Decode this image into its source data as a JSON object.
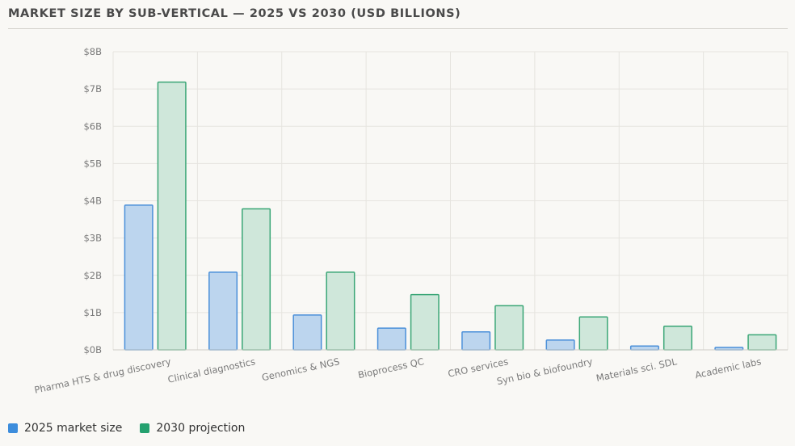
{
  "colors": {
    "series_2025_fill": "#bcd5ee",
    "series_2025_stroke": "#4a8fd9",
    "series_2030_fill": "#cfe7da",
    "series_2030_stroke": "#3aa676",
    "legend_2025": "#3d8ddc",
    "legend_2030": "#25a16f",
    "grid": "#e6e4df",
    "tick_text": "#7a7a7a"
  },
  "chart_data": {
    "type": "bar",
    "title": "MARKET SIZE BY SUB-VERTICAL — 2025 VS 2030 (USD BILLIONS)",
    "categories": [
      "Pharma HTS & drug discovery",
      "Clinical diagnostics",
      "Genomics & NGS",
      "Bioprocess QC",
      "CRO services",
      "Syn bio & biofoundry",
      "Materials sci. SDL",
      "Academic labs"
    ],
    "series": [
      {
        "name": "2025 market size",
        "values": [
          3.9,
          2.1,
          0.95,
          0.6,
          0.5,
          0.28,
          0.12,
          0.08
        ]
      },
      {
        "name": "2030 projection",
        "values": [
          7.2,
          3.8,
          2.1,
          1.5,
          1.2,
          0.9,
          0.65,
          0.42
        ]
      }
    ],
    "ylim": [
      0,
      8
    ],
    "y_ticks": [
      "$0B",
      "$1B",
      "$2B",
      "$3B",
      "$4B",
      "$5B",
      "$6B",
      "$7B",
      "$8B"
    ],
    "grid": true,
    "legend_position": "bottom-left"
  }
}
